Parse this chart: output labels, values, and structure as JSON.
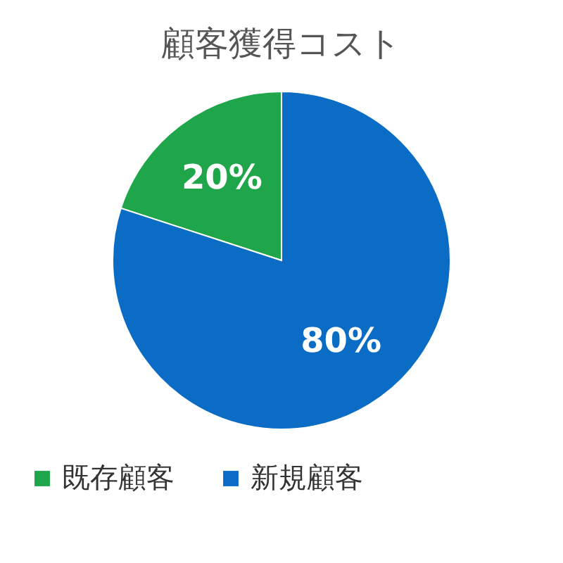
{
  "chart_data": {
    "type": "pie",
    "title": "顧客獲得コスト",
    "categories": [
      "既存顧客",
      "新規顧客"
    ],
    "values": [
      20,
      80
    ],
    "colors": [
      "#1fa64a",
      "#0a6cc4"
    ],
    "value_labels": [
      "20%",
      "80%"
    ],
    "legend": "bottom"
  }
}
